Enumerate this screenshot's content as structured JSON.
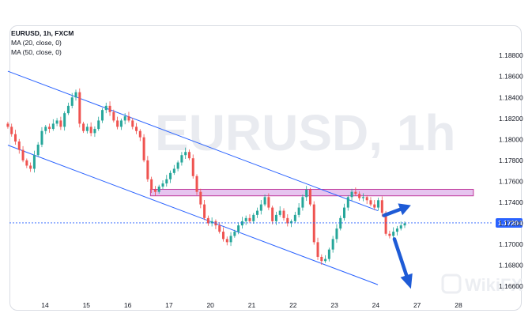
{
  "legend": {
    "symbol": "EURUSD, 1h, FXCM",
    "ma20": "MA (20, close, 0)",
    "ma50": "MA (50, close, 0)"
  },
  "watermark": {
    "text": "EURUSD, 1h",
    "brand": "WikiFX"
  },
  "colors": {
    "up": "#26a69a",
    "down": "#ef5350",
    "channel": "#2962ff",
    "zone_fill": "#e6c4ef",
    "zone_border": "#c0399b",
    "price_line": "#2962ff",
    "arrow": "#1e5bd6"
  },
  "chart_data": {
    "type": "candlestick",
    "timeframe": "1h",
    "x_tick_labels": [
      "14",
      "15",
      "16",
      "17",
      "20",
      "21",
      "22",
      "23",
      "24",
      "27",
      "28"
    ],
    "y_tick_labels": [
      "1.18800",
      "1.18600",
      "1.18400",
      "1.18200",
      "1.18000",
      "1.17800",
      "1.17600",
      "1.17400",
      "1.17200",
      "1.17000",
      "1.16800",
      "1.16600"
    ],
    "ylim": [
      1.1645,
      1.1905
    ],
    "current_price": 1.17204,
    "current_price_label": "1.17204",
    "session_index": [
      0,
      1,
      2,
      3,
      4,
      5,
      6,
      7,
      8,
      9,
      10
    ],
    "candle_session_range": [
      -0.9,
      8.7
    ],
    "closes": [
      1.1812,
      1.1805,
      1.1798,
      1.179,
      1.178,
      1.1775,
      1.1772,
      1.1785,
      1.1795,
      1.1808,
      1.1812,
      1.181,
      1.1815,
      1.1818,
      1.1812,
      1.1825,
      1.1832,
      1.184,
      1.1845,
      1.1815,
      1.1808,
      1.1812,
      1.1806,
      1.181,
      1.1818,
      1.1828,
      1.1832,
      1.1826,
      1.1818,
      1.1812,
      1.1818,
      1.1822,
      1.1818,
      1.1812,
      1.1808,
      1.1802,
      1.178,
      1.1762,
      1.1752,
      1.175,
      1.1755,
      1.1758,
      1.1762,
      1.1768,
      1.1772,
      1.1778,
      1.1785,
      1.1788,
      1.1782,
      1.1765,
      1.175,
      1.1738,
      1.1725,
      1.172,
      1.1722,
      1.1718,
      1.1712,
      1.1705,
      1.1702,
      1.1708,
      1.1712,
      1.1718,
      1.1722,
      1.1725,
      1.1722,
      1.1728,
      1.1732,
      1.1738,
      1.1745,
      1.1735,
      1.1722,
      1.1728,
      1.1732,
      1.1725,
      1.172,
      1.1722,
      1.1728,
      1.1735,
      1.1745,
      1.1752,
      1.1738,
      1.1702,
      1.1688,
      1.1684,
      1.1686,
      1.1695,
      1.1705,
      1.1715,
      1.1725,
      1.1735,
      1.1745,
      1.175,
      1.1748,
      1.1744,
      1.1745,
      1.1742,
      1.1738,
      1.1735,
      1.1742,
      1.173,
      1.171,
      1.1708,
      1.1712,
      1.1715,
      1.1718,
      1.172
    ],
    "resistance_zone": [
      1.17462,
      1.17524
    ],
    "upper_channel_line": [
      [
        -0.9,
        1.1865
      ],
      [
        8.05,
        1.1732
      ]
    ],
    "lower_channel_line": [
      [
        -0.9,
        1.17945
      ],
      [
        8.05,
        1.16615
      ]
    ],
    "forecast_up_arrow": [
      [
        8.2,
        1.17275
      ],
      [
        8.85,
        1.17372
      ]
    ],
    "forecast_down_arrow": [
      [
        8.45,
        1.1705
      ],
      [
        8.85,
        1.16575
      ]
    ]
  }
}
